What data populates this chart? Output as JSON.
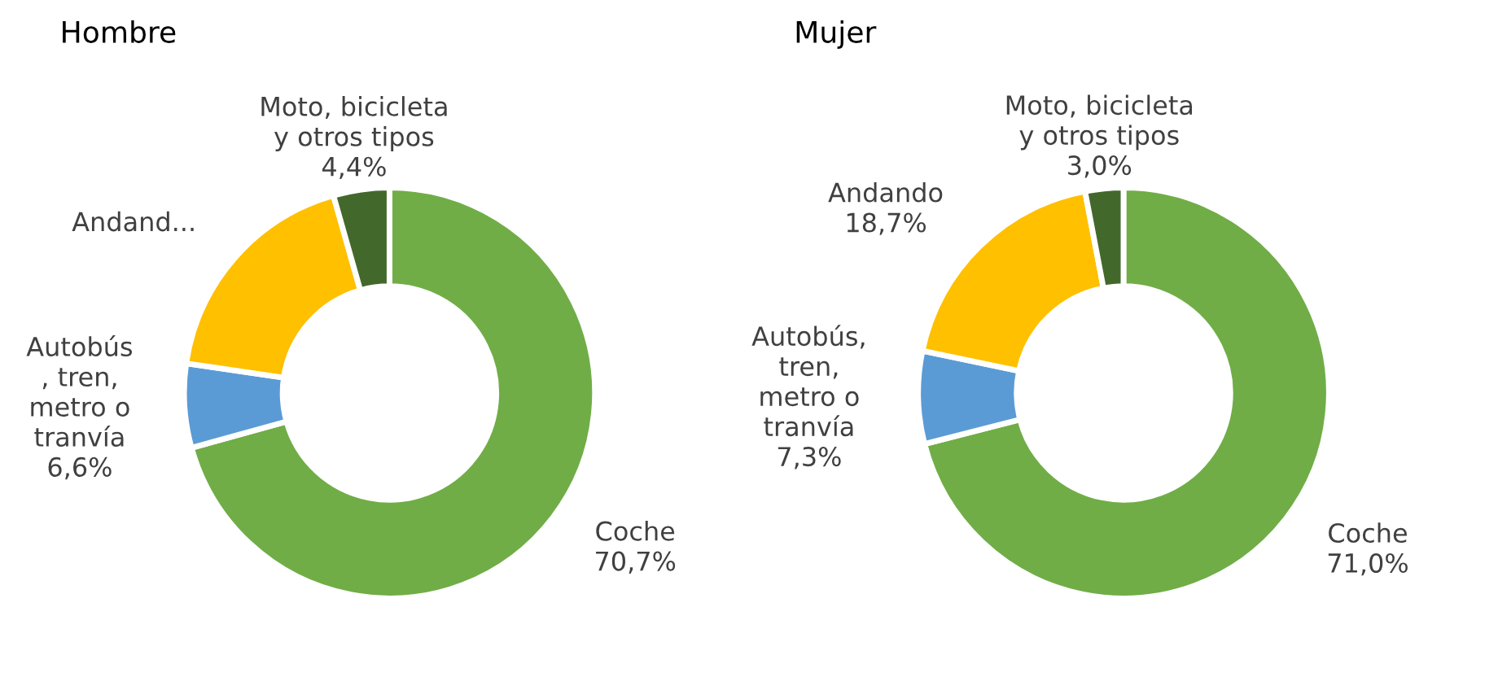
{
  "chart_data": [
    {
      "type": "donut",
      "title": "Hombre",
      "categories": [
        "Coche",
        "Autobús\n, tren,\nmetro o\ntranvía",
        "Andand...",
        "Moto, bicicleta\ny otros tipos"
      ],
      "values": [
        70.7,
        6.6,
        18.3,
        4.4
      ],
      "colors": [
        "#70ad47",
        "#5b9bd5",
        "#ffc000",
        "#43682b"
      ],
      "value_labels": [
        "70,7%",
        "6,6%",
        null,
        "4,4%"
      ]
    },
    {
      "type": "donut",
      "title": "Mujer",
      "categories": [
        "Coche",
        "Autobús,\ntren,\nmetro o\ntranvía",
        "Andando",
        "Moto, bicicleta\ny otros tipos"
      ],
      "values": [
        71.0,
        7.3,
        18.7,
        3.0
      ],
      "colors": [
        "#70ad47",
        "#5b9bd5",
        "#ffc000",
        "#43682b"
      ],
      "value_labels": [
        "71,0%",
        "7,3%",
        "18,7%",
        "3,0%"
      ]
    }
  ]
}
